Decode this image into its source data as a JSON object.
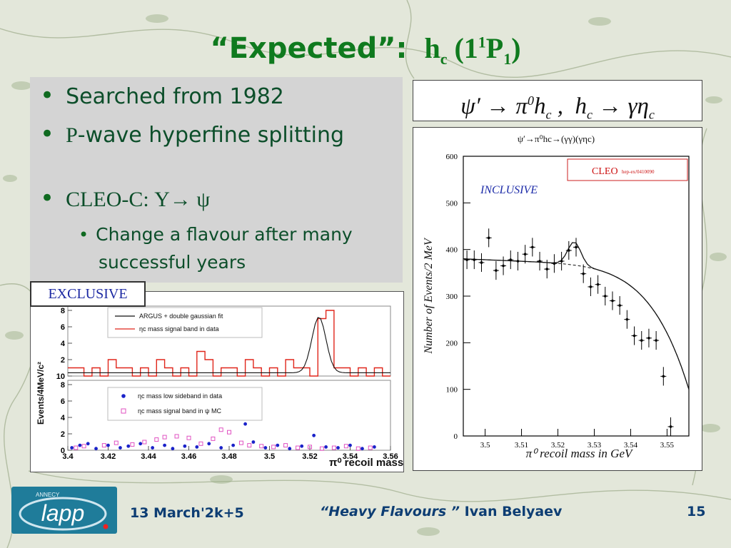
{
  "slide": {
    "title_quoted": "“Expected”:",
    "title_h": "h",
    "title_c": "c",
    "title_open": " (1",
    "title_sup": "1",
    "title_P": "P",
    "title_sub1": "1",
    "title_close": ")"
  },
  "bullets": {
    "b1": "Searched from  1982",
    "b2_p": "P",
    "b2_rest": "-wave hyperfine splitting",
    "b3": "CLEO-C:     Υ→ ψ",
    "b4_line1": "Change a flavour after many",
    "b4_line2": "successful years"
  },
  "formula": "ψ′ → π⁰h_c ,  h_c → γη_c",
  "left_plot": {
    "tag": "EXCLUSIVE",
    "ylabel": "Events/4MeV/c²",
    "xlabel": "π⁰ recoil mass",
    "legend_top": [
      "ARGUS + double gaussian fit",
      "ηc mass signal band in data"
    ],
    "legend_bottom": [
      "ηc mass low sideband in data",
      "ηc mass signal band in ψ MC"
    ],
    "xticks": [
      "3.4",
      "3.42",
      "3.44",
      "3.46",
      "3.48",
      "3.5",
      "3.52",
      "3.54",
      "3.56"
    ],
    "top_yticks": [
      "10",
      "2",
      "4",
      "6",
      "8"
    ],
    "bottom_yticks": [
      "0",
      "2",
      "4",
      "6",
      "8"
    ],
    "colors": {
      "hist": "#e0261b",
      "fit": "#111111",
      "dots": "#1a22c9",
      "squares": "#e052c2"
    }
  },
  "right_plot": {
    "title": "ψ′→π⁰hc→(γγ)(γηc)",
    "cleo_label": "CLEO",
    "cleo_ref": "hep-ex/0410090",
    "inclusive": "INCLUSIVE",
    "ylabel": "Number of Events/2 MeV",
    "xlabel": "π⁰ recoil mass in GeV",
    "xticks": [
      "3.5",
      "3.51",
      "3.52",
      "3.53",
      "3.54",
      "3.55"
    ],
    "yticks": [
      "0",
      "100",
      "200",
      "300",
      "400",
      "500",
      "600"
    ]
  },
  "chart_data": [
    {
      "type": "scatter",
      "title": "ψ′→π⁰hc→(γγ)(γηc)",
      "xlabel": "π⁰ recoil mass in GeV",
      "ylabel": "Number of Events/2 MeV",
      "xlim": [
        3.494,
        3.556
      ],
      "ylim": [
        0,
        600
      ],
      "series": [
        {
          "name": "data",
          "x": [
            3.495,
            3.497,
            3.499,
            3.501,
            3.503,
            3.505,
            3.507,
            3.509,
            3.511,
            3.513,
            3.515,
            3.517,
            3.519,
            3.521,
            3.523,
            3.525,
            3.527,
            3.529,
            3.531,
            3.533,
            3.535,
            3.537,
            3.539,
            3.541,
            3.543,
            3.545,
            3.547,
            3.549,
            3.551
          ],
          "values": [
            378,
            378,
            372,
            425,
            355,
            365,
            378,
            375,
            390,
            405,
            375,
            358,
            370,
            375,
            398,
            405,
            348,
            320,
            325,
            300,
            290,
            280,
            250,
            215,
            205,
            210,
            205,
            128,
            20
          ]
        }
      ]
    },
    {
      "type": "bar",
      "xlabel": "π⁰ recoil mass",
      "ylabel": "Events/4MeV/c²",
      "xlim": [
        3.4,
        3.56
      ],
      "ylim": [
        0,
        8
      ],
      "series": [
        {
          "name": "ηc mass signal band in data",
          "x": [
            3.4,
            3.404,
            3.408,
            3.412,
            3.416,
            3.42,
            3.424,
            3.428,
            3.432,
            3.436,
            3.44,
            3.444,
            3.448,
            3.452,
            3.456,
            3.46,
            3.464,
            3.468,
            3.472,
            3.476,
            3.48,
            3.484,
            3.488,
            3.492,
            3.496,
            3.5,
            3.504,
            3.508,
            3.512,
            3.516,
            3.52,
            3.524,
            3.528,
            3.532,
            3.536,
            3.54,
            3.544,
            3.548,
            3.552,
            3.556
          ],
          "values": [
            1,
            1,
            0,
            1,
            0,
            2,
            1,
            1,
            0,
            1,
            0,
            2,
            1,
            0,
            1,
            0,
            3,
            2,
            0,
            1,
            1,
            0,
            2,
            1,
            0,
            1,
            0,
            2,
            1,
            1,
            0,
            7,
            8,
            1,
            1,
            0,
            1,
            0,
            1,
            0
          ]
        }
      ]
    }
  ],
  "footer": {
    "date": "13 March'2k+5",
    "talk_title": "“Heavy Flavours ”",
    "author": " Ivan  Belyaev",
    "page": "15",
    "logo_top": "ANNECY",
    "logo_text": "lapp"
  }
}
